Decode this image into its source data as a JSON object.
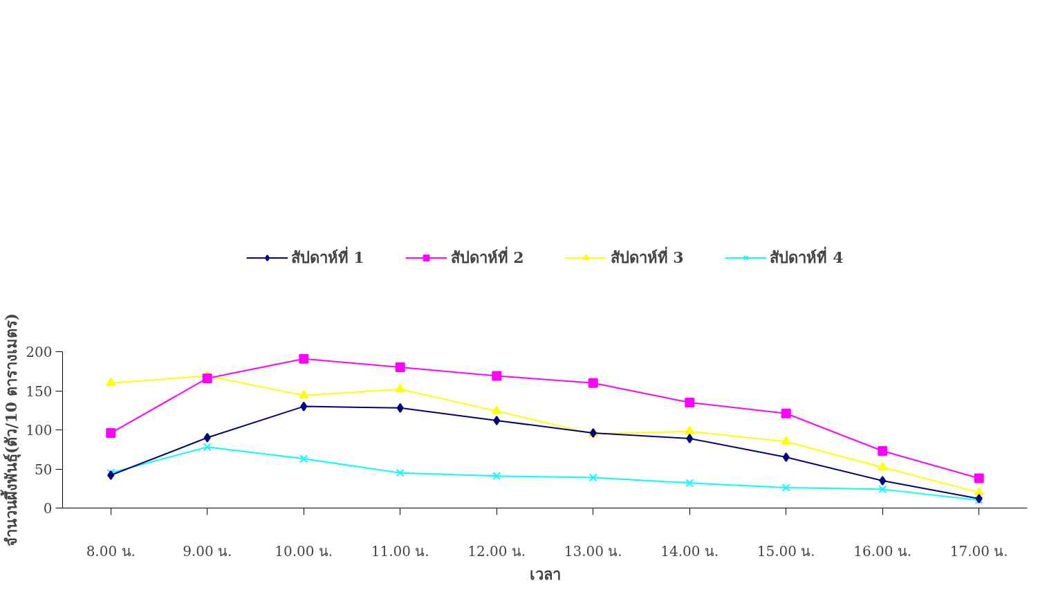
{
  "chart_data": {
    "type": "line",
    "xlabel": "เวลา",
    "ylabel": "จำนวนผึ้งพันธุ์(ตัว/10 ตารางเมตร)",
    "categories": [
      "8.00 น.",
      "9.00 น.",
      "10.00 น.",
      "11.00 น.",
      "12.00 น.",
      "13.00 น.",
      "14.00 น.",
      "15.00 น.",
      "16.00 น.",
      "17.00 น."
    ],
    "ylim": [
      0,
      200
    ],
    "yticks": [
      0,
      50,
      100,
      150,
      200
    ],
    "grid": false,
    "legend": "top",
    "series": [
      {
        "name": "สัปดาห์ที่ 1",
        "color": "#000080",
        "marker": "diamond",
        "values": [
          42,
          90,
          130,
          128,
          112,
          96,
          89,
          65,
          35,
          12
        ]
      },
      {
        "name": "สัปดาห์ที่ 2",
        "color": "#ff00ff",
        "marker": "square",
        "values": [
          96,
          166,
          191,
          180,
          169,
          160,
          135,
          121,
          73,
          38
        ]
      },
      {
        "name": "สัปดาห์ที่ 3",
        "color": "#ffff00",
        "marker": "triangle",
        "values": [
          160,
          169,
          144,
          152,
          124,
          95,
          98,
          85,
          52,
          20
        ]
      },
      {
        "name": "สัปดาห์ที่ 4",
        "color": "#00ffff",
        "marker": "cross",
        "values": [
          45,
          78,
          63,
          45,
          41,
          39,
          32,
          26,
          24,
          10
        ]
      }
    ]
  }
}
